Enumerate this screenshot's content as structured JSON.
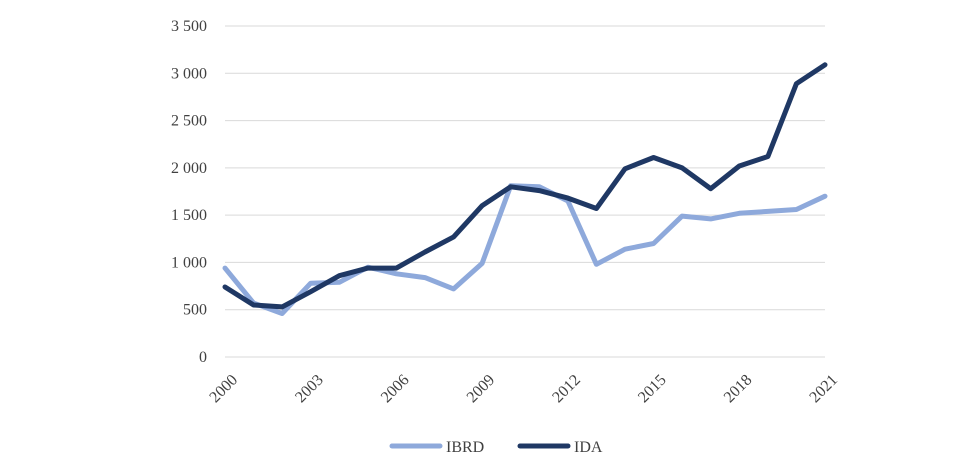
{
  "chart_data": {
    "type": "line",
    "title": "",
    "xlabel": "",
    "ylabel": "",
    "ylim": [
      0,
      3500
    ],
    "yticks": [
      0,
      500,
      1000,
      1500,
      2000,
      2500,
      3000,
      3500
    ],
    "ytick_labels": [
      "0",
      "500",
      "1 000",
      "1 500",
      "2 000",
      "2 500",
      "3 000",
      "3 500"
    ],
    "x": [
      2000,
      2001,
      2002,
      2003,
      2004,
      2005,
      2006,
      2007,
      2008,
      2009,
      2010,
      2011,
      2012,
      2013,
      2014,
      2015,
      2016,
      2017,
      2018,
      2019,
      2020,
      2021
    ],
    "xtick_labels": [
      "2000",
      "2003",
      "2006",
      "2009",
      "2012",
      "2015",
      "2018",
      "2021"
    ],
    "grid": true,
    "legend_position": "bottom",
    "series": [
      {
        "name": "IBRD",
        "color": "#8EA9DB",
        "values": [
          940,
          570,
          460,
          780,
          790,
          950,
          880,
          840,
          720,
          990,
          1810,
          1800,
          1650,
          980,
          1140,
          1200,
          1490,
          1460,
          1520,
          1540,
          1560,
          1700
        ]
      },
      {
        "name": "IDA",
        "color": "#1F3864",
        "values": [
          740,
          550,
          530,
          690,
          860,
          940,
          940,
          1110,
          1270,
          1600,
          1800,
          1760,
          1680,
          1570,
          1990,
          2110,
          2000,
          1780,
          2020,
          2120,
          2890,
          3090
        ]
      }
    ]
  }
}
